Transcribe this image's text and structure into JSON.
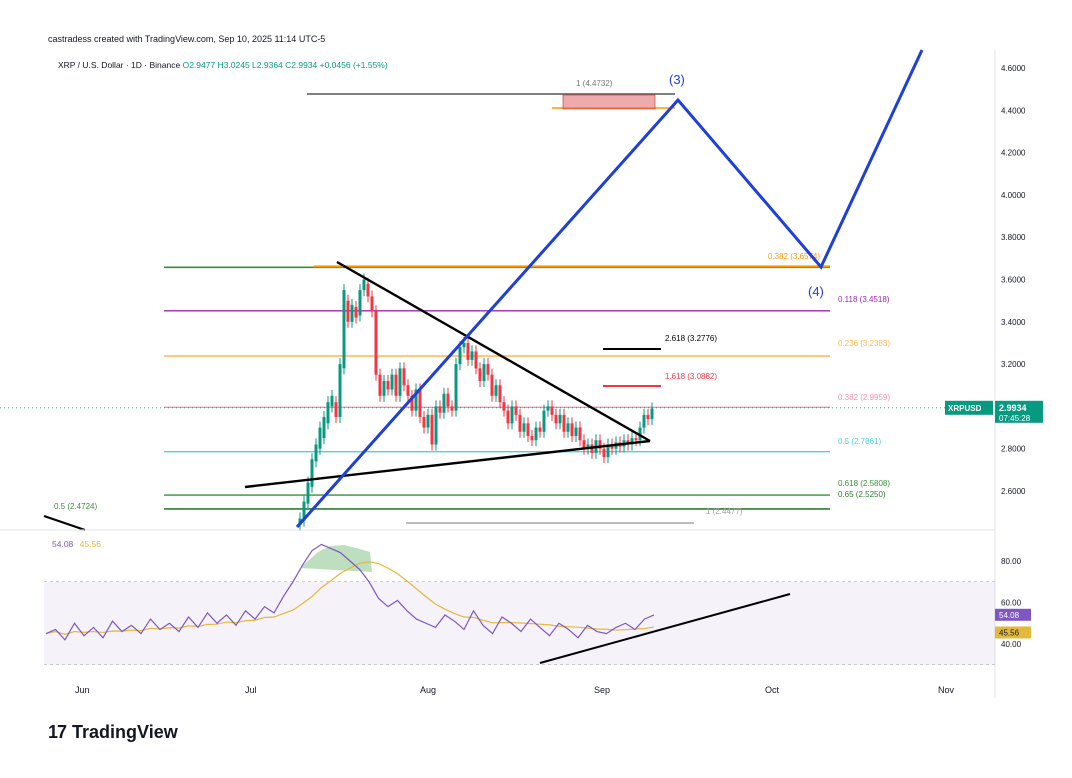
{
  "header": {
    "created_by": "castradess created with TradingView.com, Sep 10, 2025 11:14 UTC-5",
    "symbol": "XRP / U.S. Dollar · 1D · Binance",
    "ohlc": "O2.9477  H3.0245  L2.9364  C2.9934  +0.0456 (+1.55%)"
  },
  "price_tag": {
    "symbol": "XRPUSD",
    "price": "2.9934",
    "countdown": "07:45:28"
  },
  "rsi_legend": {
    "rsi": "54.08",
    "ma": "45.56"
  },
  "rsi_tags": {
    "rsi": "54.08",
    "ma": "45.56"
  },
  "footer": {
    "brand": "TradingView"
  },
  "colors": {
    "up": "#089981",
    "down": "#f23645",
    "wave": "#1e3fd8",
    "fib_green": "#388e3c",
    "fib_orange": "#ff9800"
  },
  "chart_data": {
    "type": "line",
    "title": "",
    "xlabel": "",
    "ylabel": "",
    "x_ticks": [
      "Jun",
      "Jul",
      "Aug",
      "Sep",
      "Oct",
      "Nov"
    ],
    "y_ticks": [
      "4.6000",
      "4.4000",
      "4.2000",
      "4.0000",
      "3.8000",
      "3.6000",
      "3.4000",
      "3.2000",
      "2.8000",
      "2.6000"
    ],
    "ylim": [
      2.47,
      4.7
    ],
    "fib_levels": [
      {
        "label": "1 (4.4732)",
        "value": 4.4732,
        "color": "#333333"
      },
      {
        "label": "0.382 (3.6574)",
        "value": 3.6574,
        "color": "#ff9800"
      },
      {
        "label": "0.118 (3.4518)",
        "value": 3.4518,
        "color": "#9c27b0"
      },
      {
        "label": "0.236 (3.2383)",
        "value": 3.2383,
        "color": "#ffb74d"
      },
      {
        "label": "0.382 (2.9959)",
        "value": 2.9959,
        "color": "#f48fb1"
      },
      {
        "label": "0.5 (2.7861)",
        "value": 2.7861,
        "color": "#4dd0e1"
      },
      {
        "label": "0.618 (2.5808)",
        "value": 2.5808,
        "color": "#388e3c"
      },
      {
        "label": "0.65 (2.5250)",
        "value": 2.525,
        "color": "#388e3c"
      },
      {
        "label": "1 (2.4477)",
        "value": 2.4477,
        "color": "#9e9e9e"
      },
      {
        "label": "0.5 (2.4724)",
        "value": 2.4724,
        "color": "#388e3c"
      }
    ],
    "extensions": [
      {
        "label": "2.618 (3.2776)",
        "value": 3.2776,
        "color": "#000000"
      },
      {
        "label": "1.618 (3.0882)",
        "value": 3.0882,
        "color": "#f23645"
      }
    ],
    "wave_labels": [
      "(3)",
      "(4)"
    ],
    "wave_path": [
      {
        "date": "2025-07-07",
        "price": 2.5
      },
      {
        "date": "2025-09-25",
        "price": 4.45
      },
      {
        "date": "2025-10-25",
        "price": 3.66
      },
      {
        "date": "2025-11-10",
        "price": 4.7
      }
    ],
    "rsi": {
      "y_ticks": [
        "80.00",
        "60.00",
        "40.00"
      ],
      "ylim": [
        30,
        90
      ],
      "values": [
        45,
        47,
        42,
        50,
        44,
        48,
        43,
        51,
        46,
        49,
        45,
        52,
        47,
        50,
        46,
        53,
        48,
        55,
        50,
        54,
        49,
        56,
        52,
        58,
        55,
        63,
        70,
        78,
        85,
        88,
        86,
        84,
        80,
        76,
        70,
        62,
        58,
        61,
        56,
        52,
        50,
        48,
        54,
        51,
        47,
        56,
        49,
        45,
        53,
        50,
        46,
        52,
        48,
        44,
        50,
        47,
        43,
        49,
        46,
        45,
        48,
        50,
        47,
        52,
        54
      ]
    }
  }
}
